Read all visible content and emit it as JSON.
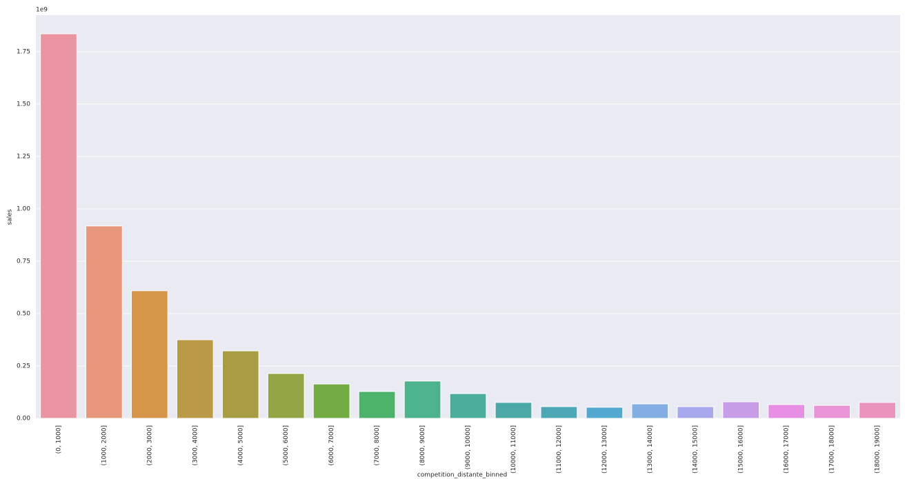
{
  "chart_data": {
    "type": "bar",
    "y_offset_label": "1e9",
    "xlabel": "competition_distante_binned",
    "ylabel": "sales",
    "categories": [
      "(0, 1000]",
      "(1000, 2000]",
      "(2000, 3000]",
      "(3000, 4000]",
      "(4000, 5000]",
      "(5000, 6000]",
      "(6000, 7000]",
      "(7000, 8000]",
      "(8000, 9000]",
      "(9000, 10000]",
      "(10000, 11000]",
      "(11000, 12000]",
      "(12000, 13000]",
      "(13000, 14000]",
      "(14000, 15000]",
      "(15000, 16000]",
      "(16000, 17000]",
      "(17000, 18000]",
      "(18000, 19000]"
    ],
    "values": [
      1.835,
      0.918,
      0.609,
      0.375,
      0.322,
      0.214,
      0.164,
      0.128,
      0.178,
      0.118,
      0.076,
      0.056,
      0.053,
      0.069,
      0.056,
      0.079,
      0.066,
      0.062,
      0.076
    ],
    "colors": [
      "#ec95a2",
      "#e8977c",
      "#d5964a",
      "#ba9a47",
      "#a89d42",
      "#92a444",
      "#73ac43",
      "#4db26a",
      "#4cb38c",
      "#4bae9c",
      "#4ba9a8",
      "#4da8b5",
      "#52a8cf",
      "#82aee4",
      "#a8a9ed",
      "#c79de8",
      "#e68fe5",
      "#e894d6",
      "#ea93bd"
    ],
    "ylim": [
      0,
      1.924
    ],
    "yticks": [
      {
        "value": 0,
        "label": "0.00"
      },
      0.25,
      {
        "value": 0.5,
        "label": "0.50"
      },
      0.75,
      {
        "value": 1,
        "label": "1.00"
      },
      1.25,
      {
        "value": 1.5,
        "label": "1.50"
      },
      1.75
    ],
    "grid": true
  }
}
